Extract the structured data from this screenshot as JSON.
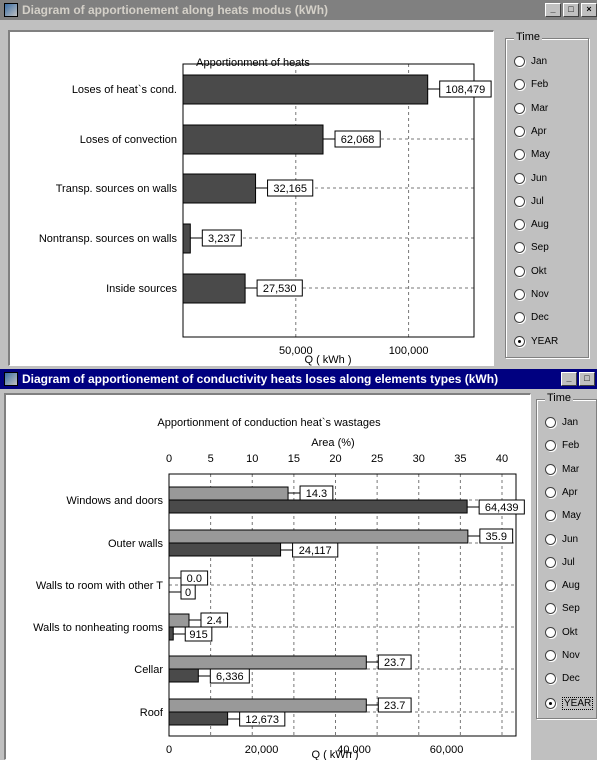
{
  "windows": [
    {
      "title": "Diagram of apportionement along heats modus (kWh)",
      "controls": [
        "_",
        "□",
        "×"
      ],
      "time_group": {
        "title": "Time",
        "options": [
          "Jan",
          "Feb",
          "Mar",
          "Apr",
          "May",
          "Jun",
          "Jul",
          "Aug",
          "Sep",
          "Okt",
          "Nov",
          "Dec",
          "YEAR"
        ],
        "selected": "YEAR"
      }
    },
    {
      "title": "Diagram of apportionement of conductivity heats loses along elements types (kWh)",
      "controls": [
        "_",
        "□"
      ],
      "time_group": {
        "title": "Time",
        "options": [
          "Jan",
          "Feb",
          "Mar",
          "Apr",
          "May",
          "Jun",
          "Jul",
          "Aug",
          "Sep",
          "Okt",
          "Nov",
          "Dec",
          "YEAR"
        ],
        "selected": "YEAR"
      }
    }
  ],
  "colors": {
    "bar_dark": "#4a4a4a",
    "bar_light": "#999999",
    "window_bg": "#c0c0c0",
    "title_active": "#000080",
    "title_inactive": "#808080"
  },
  "chart_data": [
    {
      "type": "bar",
      "orientation": "horizontal",
      "title": "Apportionment of heats",
      "xlabel": "Q ( kWh )",
      "categories": [
        "Loses of heat`s cond.",
        "Loses of convection",
        "Transp. sources on walls",
        "Nontransp. sources on walls",
        "Inside sources"
      ],
      "values": [
        108479,
        62068,
        32165,
        3237,
        27530
      ],
      "value_labels": [
        "108,479",
        "62,068",
        "32,165",
        "3,237",
        "27,530"
      ],
      "xlim": [
        0,
        129000
      ],
      "xticks": [
        50000,
        100000
      ],
      "xtick_labels": [
        "50,000",
        "100,000"
      ],
      "grid": true
    },
    {
      "type": "bar",
      "orientation": "horizontal",
      "title": "Apportionment of conduction heat`s wastages",
      "xlabel": "Q ( kWh )",
      "x2label": "Area (%)",
      "categories": [
        "Windows and doors",
        "Outer walls",
        "Walls to room with other T",
        "Walls to nonheating rooms",
        "Cellar",
        "Roof"
      ],
      "series": [
        {
          "axis": "top",
          "values": [
            14.3,
            35.9,
            0.0,
            2.4,
            23.7,
            23.7
          ],
          "labels": [
            "14.3",
            "35.9",
            "0.0",
            "2.4",
            "23.7",
            "23.7"
          ]
        },
        {
          "axis": "bottom",
          "values": [
            64439,
            24117,
            0,
            915,
            6336,
            12673
          ],
          "labels": [
            "64,439",
            "24,117",
            "0",
            "915",
            "6,336",
            "12,673"
          ]
        }
      ],
      "xlim": [
        0,
        75000
      ],
      "xticks": [
        0,
        20000,
        40000,
        60000
      ],
      "xtick_labels": [
        "0",
        "20,000",
        "40,000",
        "60,000"
      ],
      "x2lim": [
        0,
        40
      ],
      "x2ticks": [
        0,
        5,
        10,
        15,
        20,
        25,
        30,
        35,
        40
      ],
      "x2tick_labels": [
        "0",
        "5",
        "10",
        "15",
        "20",
        "25",
        "30",
        "35",
        "40"
      ],
      "grid": true
    }
  ]
}
